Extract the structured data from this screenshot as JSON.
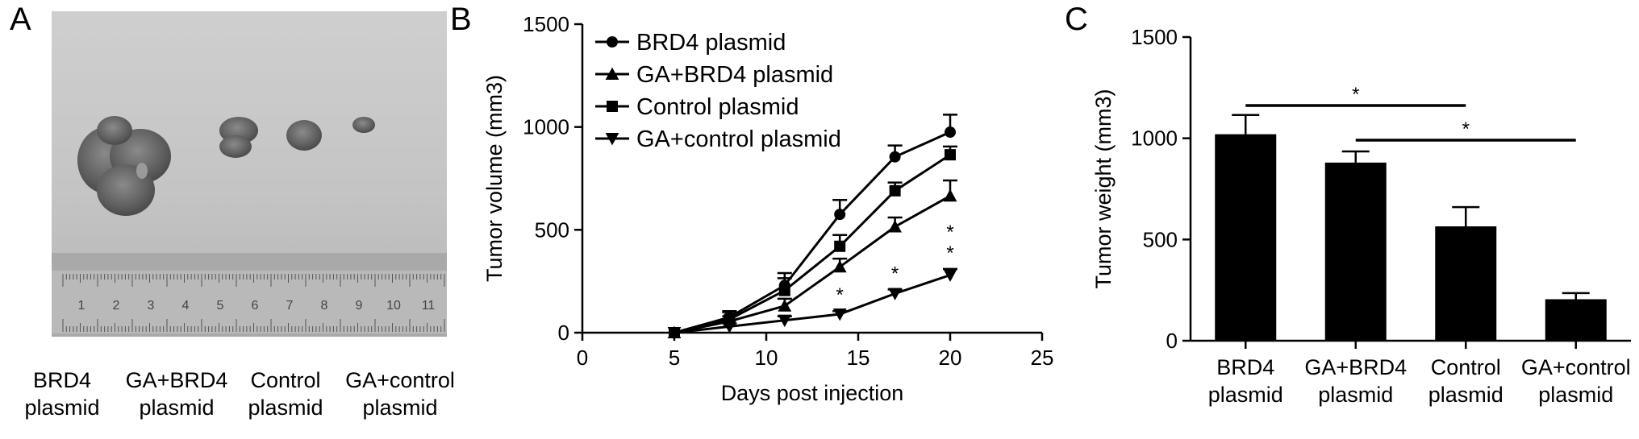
{
  "panels": {
    "a": {
      "letter": "A",
      "ruler_numbers": [
        "1",
        "2",
        "3",
        "4",
        "5",
        "6",
        "7",
        "8",
        "9",
        "10",
        "11"
      ],
      "labels": [
        [
          "BRD4",
          "plasmid"
        ],
        [
          "GA+BRD4",
          "plasmid"
        ],
        [
          "Control",
          "plasmid"
        ],
        [
          "GA+control",
          "plasmid"
        ]
      ]
    },
    "b": {
      "letter": "B"
    },
    "c": {
      "letter": "C"
    }
  },
  "chart_data": [
    {
      "type": "line",
      "ylabel": "Tumor volume (mm3)",
      "xlabel": "Days post injection",
      "xlim": [
        0,
        25
      ],
      "ylim": [
        0,
        1500
      ],
      "xticks": [
        0,
        5,
        10,
        15,
        20,
        25
      ],
      "yticks": [
        0,
        500,
        1000,
        1500
      ],
      "legend_position": "top-left",
      "x": [
        5,
        8,
        11,
        14,
        17,
        20
      ],
      "series": [
        {
          "name": "BRD4 plasmid",
          "marker": "circle",
          "values": [
            0,
            75,
            230,
            575,
            855,
            975
          ],
          "errors": [
            0,
            30,
            60,
            70,
            55,
            85
          ]
        },
        {
          "name": "GA+BRD4 plasmid",
          "marker": "triangle-up",
          "values": [
            0,
            55,
            130,
            320,
            515,
            665
          ],
          "errors": [
            0,
            25,
            35,
            40,
            45,
            75
          ]
        },
        {
          "name": "Control plasmid",
          "marker": "square",
          "values": [
            0,
            65,
            205,
            420,
            690,
            865
          ],
          "errors": [
            0,
            35,
            60,
            55,
            40,
            40
          ]
        },
        {
          "name": "GA+control plasmid",
          "marker": "triangle-down",
          "values": [
            0,
            30,
            60,
            90,
            190,
            280
          ],
          "errors": [
            0,
            15,
            20,
            15,
            20,
            30
          ]
        }
      ],
      "annotations": [
        {
          "text": "*",
          "x": 14,
          "series": "GA+control plasmid"
        },
        {
          "text": "*",
          "x": 17,
          "series": "GA+control plasmid"
        },
        {
          "text": "*",
          "x": 20,
          "series": "GA+control plasmid"
        },
        {
          "text": "*",
          "x": 20,
          "series": "GA+control plasmid"
        }
      ]
    },
    {
      "type": "bar",
      "ylabel": "Tumor weight (mm3)",
      "ylim": [
        0,
        1500
      ],
      "yticks": [
        0,
        500,
        1000,
        1500
      ],
      "categories": [
        [
          "BRD4",
          "plasmid"
        ],
        [
          "GA+BRD4",
          "plasmid"
        ],
        [
          "Control",
          "plasmid"
        ],
        [
          "GA+control",
          "plasmid"
        ]
      ],
      "values": [
        1020,
        880,
        565,
        205
      ],
      "errors": [
        95,
        55,
        95,
        30
      ],
      "bar_color": "#000000",
      "significance": [
        {
          "from": 0,
          "to": 2,
          "text": "*"
        },
        {
          "from": 1,
          "to": 3,
          "text": "*"
        }
      ]
    }
  ]
}
